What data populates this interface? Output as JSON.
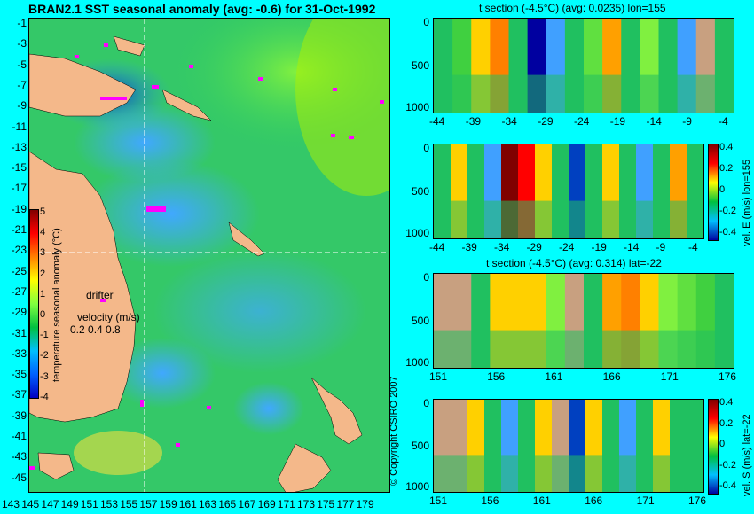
{
  "map": {
    "title": "BRAN2.1 SST seasonal anomaly (avg: -0.6) for 31-Oct-1992",
    "colorbar_label": "temperature seasonal anomaly (°C)",
    "colorbar_ticks": [
      "5",
      "4",
      "3",
      "2",
      "1",
      "0",
      "-1",
      "-2",
      "-3",
      "-4"
    ],
    "drifter_label": "drifter",
    "velocity_label": "velocity (m/s)",
    "velocity_scale": "0.2 0.4 0.8",
    "y_ticks": [
      "-1",
      "-3",
      "-5",
      "-7",
      "-9",
      "-11",
      "-13",
      "-15",
      "-17",
      "-19",
      "-21",
      "-23",
      "-25",
      "-27",
      "-29",
      "-31",
      "-33",
      "-35",
      "-37",
      "-39",
      "-41",
      "-43",
      "-45"
    ],
    "x_ticks": [
      "143",
      "145",
      "147",
      "149",
      "151",
      "153",
      "155",
      "157",
      "159",
      "161",
      "163",
      "165",
      "167",
      "169",
      "171",
      "173",
      "175",
      "177",
      "179"
    ]
  },
  "panels": [
    {
      "title": "t section (-4.5°C) (avg: 0.0235) lon=155",
      "x_ticks": [
        "-44",
        "-39",
        "-34",
        "-29",
        "-24",
        "-19",
        "-14",
        "-9",
        "-4"
      ],
      "y_ticks": [
        "0",
        "500",
        "1000"
      ],
      "colorbar": null
    },
    {
      "title": "",
      "x_ticks": [
        "-44",
        "-39",
        "-34",
        "-29",
        "-24",
        "-19",
        "-14",
        "-9",
        "-4"
      ],
      "y_ticks": [
        "0",
        "500",
        "1000"
      ],
      "colorbar": {
        "label": "vel. E (m/s) lon=155",
        "ticks": [
          "0.4",
          "0.2",
          "0",
          "-0.2",
          "-0.4"
        ]
      }
    },
    {
      "title": "t section (-4.5°C) (avg: 0.314) lat=-22",
      "x_ticks": [
        "151",
        "156",
        "161",
        "166",
        "171",
        "176"
      ],
      "y_ticks": [
        "0",
        "500",
        "1000"
      ],
      "colorbar": null
    },
    {
      "title": "",
      "x_ticks": [
        "151",
        "156",
        "161",
        "166",
        "171",
        "176"
      ],
      "y_ticks": [
        "0",
        "500",
        "1000"
      ],
      "colorbar": {
        "label": "vel. S (m/s) lat=-22",
        "ticks": [
          "0.4",
          "0.2",
          "0",
          "-0.2",
          "-0.4"
        ]
      }
    }
  ],
  "copyright": "© Copyright CSIRO 2007",
  "chart_data": [
    {
      "type": "heatmap",
      "title": "BRAN2.1 SST seasonal anomaly (avg: -0.6) for 31-Oct-1992",
      "xlabel": "",
      "ylabel": "",
      "x_range": [
        143,
        179
      ],
      "y_range": [
        -45,
        -1
      ],
      "colorbar_range": [
        -4,
        5
      ]
    },
    {
      "type": "heatmap",
      "title": "t section (-4.5°C) (avg: 0.0235) lon=155",
      "x_range": [
        -44,
        -4
      ],
      "y_range": [
        0,
        1000
      ]
    },
    {
      "type": "heatmap",
      "title": "",
      "colorbar_label": "vel. E (m/s) lon=155",
      "x_range": [
        -44,
        -4
      ],
      "y_range": [
        0,
        1000
      ],
      "colorbar_range": [
        -0.4,
        0.4
      ]
    },
    {
      "type": "heatmap",
      "title": "t section (-4.5°C) (avg: 0.314) lat=-22",
      "x_range": [
        151,
        176
      ],
      "y_range": [
        0,
        1000
      ]
    },
    {
      "type": "heatmap",
      "title": "",
      "colorbar_label": "vel. S (m/s) lat=-22",
      "x_range": [
        151,
        176
      ],
      "y_range": [
        0,
        1000
      ],
      "colorbar_range": [
        -0.4,
        0.4
      ]
    }
  ]
}
